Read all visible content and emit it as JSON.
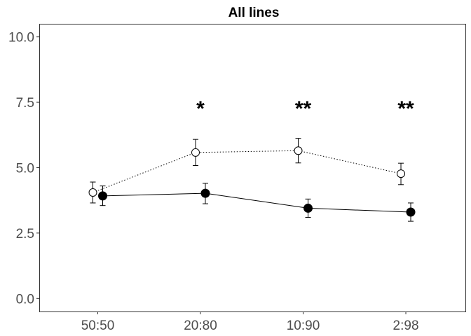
{
  "chart_data": {
    "type": "line",
    "title": "All lines",
    "xlabel": "",
    "ylabel": "",
    "categories": [
      "50:50",
      "20:80",
      "10:90",
      "2:98"
    ],
    "ylim": [
      -0.5,
      10.5
    ],
    "yticks": [
      0.0,
      2.5,
      5.0,
      7.5,
      10.0
    ],
    "ytick_labels": [
      "0.0",
      "2.5",
      "5.0",
      "7.5",
      "10.0"
    ],
    "grid": false,
    "series": [
      {
        "marker": "open-circle",
        "line_style": "dotted",
        "values": [
          4.05,
          5.58,
          5.65,
          4.77
        ],
        "error_low": [
          3.65,
          5.08,
          5.18,
          4.35
        ],
        "error_high": [
          4.45,
          6.08,
          6.12,
          5.17
        ]
      },
      {
        "marker": "filled-circle",
        "line_style": "solid",
        "values": [
          3.92,
          4.02,
          3.45,
          3.3
        ],
        "error_low": [
          3.55,
          3.62,
          3.1,
          2.95
        ],
        "error_high": [
          4.3,
          4.4,
          3.8,
          3.65
        ]
      }
    ],
    "annotations": [
      {
        "category": "20:80",
        "text": "*"
      },
      {
        "category": "10:90",
        "text": "**"
      },
      {
        "category": "2:98",
        "text": "**"
      }
    ]
  }
}
